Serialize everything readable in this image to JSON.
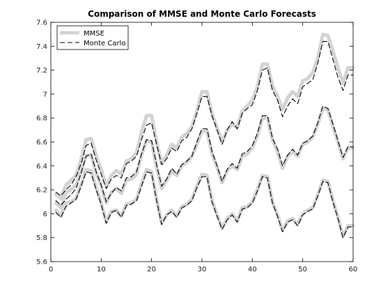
{
  "chart_data": {
    "type": "line",
    "title": "Comparison of MMSE and Monte Carlo Forecasts",
    "xlabel": "",
    "ylabel": "",
    "xlim": [
      0,
      60
    ],
    "ylim": [
      5.6,
      7.6
    ],
    "xticks": [
      0,
      10,
      20,
      30,
      40,
      50,
      60
    ],
    "yticks": [
      5.6,
      5.8,
      6,
      6.2,
      6.4,
      6.6,
      6.8,
      7,
      7.2,
      7.4,
      7.6
    ],
    "xtick_labels": [
      "0",
      "10",
      "20",
      "30",
      "40",
      "50",
      "60"
    ],
    "ytick_labels": [
      "5.6",
      "5.8",
      "6",
      "6.2",
      "6.4",
      "6.6",
      "6.8",
      "7",
      "7.2",
      "7.4",
      "7.6"
    ],
    "grid": false,
    "legend": "top-left",
    "legend_entries": [
      "MMSE",
      "Monte Carlo"
    ],
    "colors": {
      "mmse": "#d3d3d3",
      "monte_carlo": "#000000"
    },
    "x": [
      1,
      2,
      3,
      4,
      5,
      6,
      7,
      8,
      9,
      10,
      11,
      12,
      13,
      14,
      15,
      16,
      17,
      18,
      19,
      20,
      21,
      22,
      23,
      24,
      25,
      26,
      27,
      28,
      29,
      30,
      31,
      32,
      33,
      34,
      35,
      36,
      37,
      38,
      39,
      40,
      41,
      42,
      43,
      44,
      45,
      46,
      47,
      48,
      49,
      50,
      51,
      52,
      53,
      54,
      55,
      56,
      57,
      58,
      59,
      60
    ],
    "series": [
      {
        "name": "MMSE",
        "style": "solid-thick",
        "lines": {
          "upper": [
            6.16,
            6.13,
            6.24,
            6.28,
            6.32,
            6.45,
            6.62,
            6.63,
            6.48,
            6.37,
            6.23,
            6.32,
            6.36,
            6.33,
            6.44,
            6.46,
            6.51,
            6.68,
            6.82,
            6.82,
            6.6,
            6.42,
            6.49,
            6.58,
            6.55,
            6.64,
            6.67,
            6.73,
            6.86,
            7.02,
            7.02,
            6.83,
            6.72,
            6.6,
            6.7,
            6.75,
            6.72,
            6.86,
            6.9,
            6.95,
            7.06,
            7.25,
            7.25,
            7.07,
            6.98,
            6.87,
            6.97,
            7.02,
            6.98,
            7.11,
            7.13,
            7.18,
            7.3,
            7.5,
            7.49,
            7.36,
            7.22,
            7.09,
            7.22,
            7.22
          ],
          "middle": [
            6.09,
            6.05,
            6.18,
            6.2,
            6.24,
            6.35,
            6.49,
            6.49,
            6.34,
            6.23,
            6.09,
            6.18,
            6.21,
            6.17,
            6.28,
            6.29,
            6.33,
            6.49,
            6.61,
            6.6,
            6.39,
            6.21,
            6.28,
            6.36,
            6.32,
            6.4,
            6.43,
            6.48,
            6.58,
            6.69,
            6.69,
            6.5,
            6.39,
            6.26,
            6.36,
            6.4,
            6.37,
            6.48,
            6.5,
            6.55,
            6.65,
            6.8,
            6.8,
            6.62,
            6.52,
            6.38,
            6.48,
            6.52,
            6.48,
            6.58,
            6.6,
            6.64,
            6.75,
            6.88,
            6.87,
            6.73,
            6.6,
            6.46,
            6.55,
            6.55
          ],
          "lower": [
            6.03,
            5.98,
            6.09,
            6.1,
            6.13,
            6.24,
            6.37,
            6.36,
            6.22,
            6.09,
            5.93,
            6.02,
            6.03,
            5.98,
            6.08,
            6.09,
            6.12,
            6.25,
            6.37,
            6.35,
            6.12,
            5.92,
            5.99,
            6.03,
            5.98,
            6.06,
            6.08,
            6.12,
            6.23,
            6.33,
            6.32,
            6.11,
            5.99,
            5.88,
            5.96,
            6.0,
            5.94,
            6.05,
            6.06,
            6.1,
            6.2,
            6.32,
            6.31,
            6.1,
            5.99,
            5.86,
            5.94,
            5.96,
            5.91,
            6.0,
            6.03,
            6.05,
            6.16,
            6.28,
            6.27,
            6.11,
            5.97,
            5.81,
            5.9,
            5.9
          ]
        }
      },
      {
        "name": "Monte Carlo",
        "style": "dashed",
        "lines": {
          "upper": [
            6.18,
            6.15,
            6.2,
            6.24,
            6.31,
            6.42,
            6.57,
            6.59,
            6.45,
            6.33,
            6.21,
            6.29,
            6.32,
            6.3,
            6.42,
            6.44,
            6.48,
            6.62,
            6.74,
            6.76,
            6.58,
            6.41,
            6.46,
            6.55,
            6.52,
            6.61,
            6.64,
            6.71,
            6.84,
            6.98,
            6.98,
            6.82,
            6.7,
            6.58,
            6.7,
            6.77,
            6.71,
            6.84,
            6.88,
            6.91,
            7.03,
            7.2,
            7.22,
            7.03,
            6.95,
            6.81,
            6.9,
            6.96,
            6.92,
            7.06,
            7.09,
            7.12,
            7.26,
            7.44,
            7.44,
            7.29,
            7.14,
            7.03,
            7.16,
            7.16
          ],
          "middle": [
            6.11,
            6.07,
            6.12,
            6.16,
            6.21,
            6.34,
            6.48,
            6.5,
            6.35,
            6.24,
            6.1,
            6.17,
            6.22,
            6.19,
            6.3,
            6.31,
            6.35,
            6.5,
            6.62,
            6.61,
            6.41,
            6.23,
            6.29,
            6.38,
            6.33,
            6.41,
            6.44,
            6.48,
            6.6,
            6.71,
            6.71,
            6.52,
            6.4,
            6.27,
            6.37,
            6.42,
            6.38,
            6.5,
            6.52,
            6.57,
            6.67,
            6.82,
            6.82,
            6.63,
            6.54,
            6.4,
            6.49,
            6.54,
            6.49,
            6.59,
            6.61,
            6.65,
            6.76,
            6.9,
            6.88,
            6.75,
            6.61,
            6.47,
            6.56,
            6.56
          ],
          "lower": [
            6.01,
            5.97,
            6.06,
            6.09,
            6.12,
            6.23,
            6.35,
            6.34,
            6.2,
            6.08,
            5.92,
            6.01,
            6.03,
            5.97,
            6.07,
            6.08,
            6.11,
            6.23,
            6.35,
            6.34,
            6.11,
            5.91,
            5.99,
            6.02,
            5.97,
            6.05,
            6.07,
            6.11,
            6.22,
            6.31,
            6.31,
            6.1,
            5.98,
            5.87,
            5.95,
            5.99,
            5.93,
            6.04,
            6.05,
            6.09,
            6.19,
            6.31,
            6.3,
            6.09,
            5.98,
            5.85,
            5.93,
            5.95,
            5.9,
            5.99,
            6.02,
            6.04,
            6.15,
            6.27,
            6.26,
            6.1,
            5.96,
            5.8,
            5.89,
            5.89
          ]
        }
      }
    ]
  }
}
